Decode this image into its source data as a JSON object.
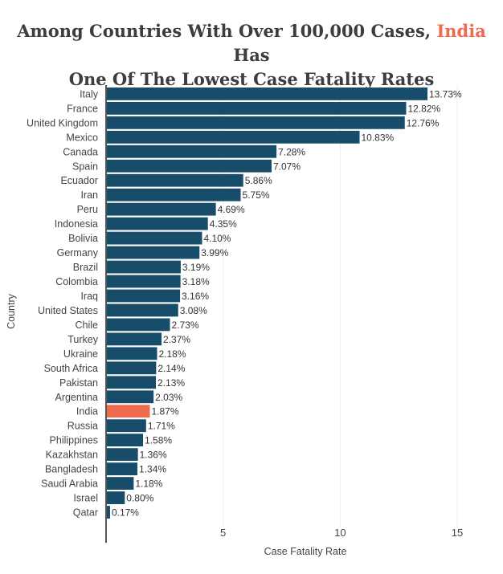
{
  "chart_data": {
    "type": "bar",
    "orientation": "horizontal",
    "title_parts": [
      {
        "text": "Among Countries With Over 100,000 Cases, ",
        "highlight": false
      },
      {
        "text": "India",
        "highlight": true
      },
      {
        "text": " Has",
        "highlight": false
      },
      {
        "text": "One Of The Lowest Case Fatality Rates",
        "highlight": false,
        "newline": true
      }
    ],
    "xlabel": "Case Fatality Rate",
    "ylabel": "Country",
    "xlim": [
      0,
      15
    ],
    "xticks": [
      5,
      10,
      15
    ],
    "grid": true,
    "value_suffix": "%",
    "categories": [
      "Italy",
      "France",
      "United Kingdom",
      "Mexico",
      "Canada",
      "Spain",
      "Ecuador",
      "Iran",
      "Peru",
      "Indonesia",
      "Bolivia",
      "Germany",
      "Brazil",
      "Colombia",
      "Iraq",
      "United States",
      "Chile",
      "Turkey",
      "Ukraine",
      "South Africa",
      "Pakistan",
      "Argentina",
      "India",
      "Russia",
      "Philippines",
      "Kazakhstan",
      "Bangladesh",
      "Saudi Arabia",
      "Israel",
      "Qatar"
    ],
    "values": [
      13.73,
      12.82,
      12.76,
      10.83,
      7.28,
      7.07,
      5.86,
      5.75,
      4.69,
      4.35,
      4.1,
      3.99,
      3.19,
      3.18,
      3.16,
      3.08,
      2.73,
      2.37,
      2.18,
      2.14,
      2.13,
      2.03,
      1.87,
      1.71,
      1.58,
      1.36,
      1.34,
      1.18,
      0.8,
      0.17
    ],
    "highlight_category": "India"
  },
  "colors": {
    "bar": "#174c6b",
    "highlight": "#ef6b50",
    "title": "#3d3d3d",
    "text": "#444444",
    "grid": "#ececec",
    "axis": "#555555"
  }
}
